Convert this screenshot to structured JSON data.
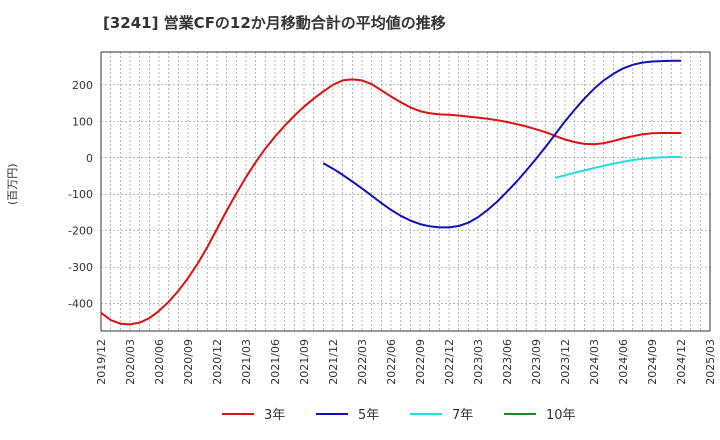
{
  "title": "[3241]  営業CFの12か月移動合計の平均値の推移",
  "chart_data": {
    "type": "line",
    "title": "[3241]  営業CFの12か月移動合計の平均値の推移",
    "ylabel": "(百万円)",
    "xlabel": "",
    "ylim": [
      -475,
      290
    ],
    "yticks": [
      -400,
      -300,
      -200,
      -100,
      0,
      100,
      200
    ],
    "xticks": [
      "2019/12",
      "2020/03",
      "2020/06",
      "2020/09",
      "2020/12",
      "2021/03",
      "2021/06",
      "2021/09",
      "2021/12",
      "2022/03",
      "2022/06",
      "2022/09",
      "2022/12",
      "2023/03",
      "2023/06",
      "2023/09",
      "2023/12",
      "2024/03",
      "2024/06",
      "2024/09",
      "2024/12",
      "2025/03"
    ],
    "grid": true,
    "legend_position": "bottom",
    "series": [
      {
        "name": "3年",
        "color": "#dd1111",
        "x": [
          "2019/12",
          "2020/01",
          "2020/02",
          "2020/03",
          "2020/04",
          "2020/05",
          "2020/06",
          "2020/07",
          "2020/08",
          "2020/09",
          "2020/10",
          "2020/11",
          "2020/12",
          "2021/01",
          "2021/02",
          "2021/03",
          "2021/04",
          "2021/05",
          "2021/06",
          "2021/07",
          "2021/08",
          "2021/09",
          "2021/10",
          "2021/11",
          "2021/12",
          "2022/01",
          "2022/02",
          "2022/03",
          "2022/04",
          "2022/05",
          "2022/06",
          "2022/07",
          "2022/08",
          "2022/09",
          "2022/10",
          "2022/11",
          "2022/12",
          "2023/01",
          "2023/02",
          "2023/03",
          "2023/04",
          "2023/05",
          "2023/06",
          "2023/07",
          "2023/08",
          "2023/09",
          "2023/10",
          "2023/11",
          "2023/12",
          "2024/01",
          "2024/02",
          "2024/03",
          "2024/04",
          "2024/05",
          "2024/06",
          "2024/07",
          "2024/08",
          "2024/09",
          "2024/10",
          "2024/11",
          "2024/12"
        ],
        "values": [
          -425,
          -445,
          -455,
          -457,
          -452,
          -440,
          -420,
          -395,
          -365,
          -330,
          -290,
          -245,
          -195,
          -145,
          -98,
          -53,
          -12,
          25,
          58,
          88,
          115,
          140,
          162,
          182,
          200,
          212,
          215,
          212,
          202,
          185,
          168,
          152,
          138,
          128,
          122,
          119,
          118,
          116,
          113,
          110,
          107,
          103,
          98,
          92,
          86,
          78,
          70,
          60,
          50,
          43,
          38,
          37,
          40,
          46,
          53,
          59,
          64,
          67,
          68,
          68,
          68
        ]
      },
      {
        "name": "5年",
        "color": "#1111bb",
        "x": [
          "2021/11",
          "2021/12",
          "2022/01",
          "2022/02",
          "2022/03",
          "2022/04",
          "2022/05",
          "2022/06",
          "2022/07",
          "2022/08",
          "2022/09",
          "2022/10",
          "2022/11",
          "2022/12",
          "2023/01",
          "2023/02",
          "2023/03",
          "2023/04",
          "2023/05",
          "2023/06",
          "2023/07",
          "2023/08",
          "2023/09",
          "2023/10",
          "2023/11",
          "2023/12",
          "2024/01",
          "2024/02",
          "2024/03",
          "2024/04",
          "2024/05",
          "2024/06",
          "2024/07",
          "2024/08",
          "2024/09",
          "2024/10",
          "2024/11",
          "2024/12"
        ],
        "values": [
          -15,
          -30,
          -47,
          -65,
          -84,
          -104,
          -124,
          -143,
          -159,
          -172,
          -182,
          -188,
          -191,
          -191,
          -187,
          -178,
          -163,
          -143,
          -120,
          -93,
          -65,
          -35,
          -3,
          30,
          65,
          100,
          132,
          162,
          189,
          212,
          230,
          245,
          255,
          261,
          264,
          265,
          266,
          266
        ]
      },
      {
        "name": "7年",
        "color": "#22dddd",
        "x": [
          "2023/11",
          "2023/12",
          "2024/01",
          "2024/02",
          "2024/03",
          "2024/04",
          "2024/05",
          "2024/06",
          "2024/07",
          "2024/08",
          "2024/09",
          "2024/10",
          "2024/11",
          "2024/12"
        ],
        "values": [
          -55,
          -48,
          -41,
          -35,
          -28,
          -22,
          -16,
          -11,
          -6,
          -3,
          0,
          1,
          2,
          2
        ]
      },
      {
        "name": "10年",
        "color": "#228822",
        "x": [],
        "values": []
      }
    ]
  }
}
